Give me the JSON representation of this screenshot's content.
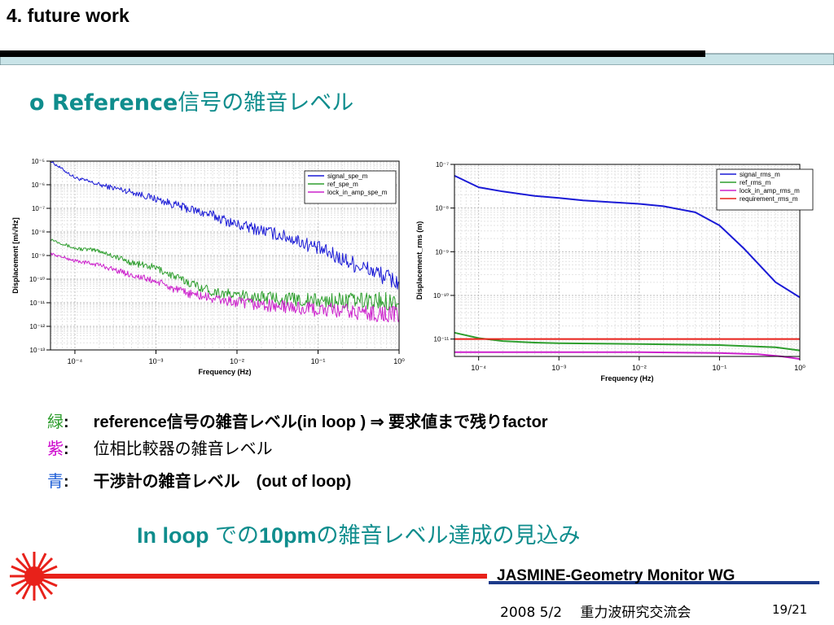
{
  "slide_title": "4. future work",
  "heading": {
    "prefix": "o Reference",
    "suffix": "信号の雑音レベル"
  },
  "colors": {
    "teal": "#0f8d8d",
    "green": "#2e9e2e",
    "magenta": "#cc00cc",
    "blue": "#1f5fd6",
    "red": "#e8211a"
  },
  "legend_notes": [
    {
      "key": "緑",
      "colon": ":",
      "text": "reference信号の雑音レベル(in loop )  ⇒ 要求値まで残りfactor",
      "color": "#2e9e2e"
    },
    {
      "key": "紫",
      "colon": ":",
      "text": "位相比較器の雑音レベル",
      "color": "#cc00cc"
    },
    {
      "key": "青",
      "colon": ":",
      "text": "干渉計の雑音レベル　(out of loop)",
      "color": "#1f5fd6"
    }
  ],
  "conclusion": {
    "part1": "In loop ",
    "part2": "での",
    "part3": "10pm",
    "part4": "の雑音レベル達成の見込み"
  },
  "footer": {
    "group": "JASMINE-Geometry Monitor WG",
    "date": "2008 5/2　 重力波研究交流会",
    "page": "19/21"
  },
  "chart_data": [
    {
      "type": "line",
      "xscale": "log",
      "yscale": "log",
      "xlabel": "Frequency (Hz)",
      "ylabel": "Displacement [m/√Hz]",
      "xlim": [
        5e-05,
        1
      ],
      "ylim": [
        1e-13,
        1e-05
      ],
      "x_ticks": [
        "10⁻⁴",
        "10⁻³",
        "10⁻²",
        "10⁻¹",
        "10⁰"
      ],
      "y_ticks": [
        "10⁻⁵",
        "10⁻⁶",
        "10⁻⁷",
        "10⁻⁸",
        "10⁻⁹",
        "10⁻¹⁰",
        "10⁻¹¹",
        "10⁻¹²",
        "10⁻¹³"
      ],
      "grid": true,
      "legend_position": "top-right",
      "series": [
        {
          "name": "signal_spe_m",
          "color": "#1a1ad6",
          "x": [
            5e-05,
            0.0001,
            0.0002,
            0.0005,
            0.001,
            0.002,
            0.005,
            0.01,
            0.02,
            0.05,
            0.1,
            0.2,
            0.5,
            1
          ],
          "y": [
            1e-05,
            2e-06,
            1e-06,
            5e-07,
            2.5e-07,
            1.2e-07,
            5e-08,
            2e-08,
            1.2e-08,
            5e-09,
            2e-09,
            7e-10,
            2e-10,
            7e-11
          ],
          "noisy": true
        },
        {
          "name": "ref_spe_m",
          "color": "#2e9e2e",
          "x": [
            5e-05,
            0.0001,
            0.0002,
            0.0005,
            0.001,
            0.002,
            0.005,
            0.01,
            0.1,
            1
          ],
          "y": [
            5e-09,
            2e-09,
            1.6e-09,
            5e-10,
            3e-10,
            1e-10,
            3e-11,
            2e-11,
            1.2e-11,
            1.2e-11
          ],
          "noisy": true
        },
        {
          "name": "lock_in_amp_spe_m",
          "color": "#cc22cc",
          "x": [
            5e-05,
            0.0001,
            0.0002,
            0.0005,
            0.001,
            0.002,
            0.005,
            0.01,
            0.1,
            1
          ],
          "y": [
            1.2e-09,
            6e-10,
            4e-10,
            1.5e-10,
            8e-11,
            3e-11,
            1.5e-11,
            1e-11,
            5e-12,
            3e-12
          ],
          "noisy": true
        }
      ]
    },
    {
      "type": "line",
      "xscale": "log",
      "yscale": "log",
      "xlabel": "Frequency (Hz)",
      "ylabel": "Displacement_rms (m)",
      "xlim": [
        5e-05,
        1
      ],
      "ylim": [
        4e-12,
        1e-07
      ],
      "x_ticks": [
        "10⁻⁴",
        "10⁻³",
        "10⁻²",
        "10⁻¹",
        "10⁰"
      ],
      "y_ticks": [
        "10⁻⁷",
        "10⁻⁸",
        "10⁻⁹",
        "10⁻¹⁰",
        "10⁻¹¹"
      ],
      "grid": true,
      "legend_position": "top-right",
      "series": [
        {
          "name": "signal_rms_m",
          "color": "#1a1ad6",
          "x": [
            5e-05,
            0.0001,
            0.0002,
            0.0005,
            0.001,
            0.002,
            0.005,
            0.01,
            0.02,
            0.05,
            0.1,
            0.2,
            0.5,
            1
          ],
          "y": [
            5.5e-08,
            3e-08,
            2.4e-08,
            1.9e-08,
            1.7e-08,
            1.5e-08,
            1.35e-08,
            1.25e-08,
            1.1e-08,
            8e-09,
            4e-09,
            1.2e-09,
            2e-10,
            9e-11
          ]
        },
        {
          "name": "ref_rms_m",
          "color": "#2e9e2e",
          "x": [
            5e-05,
            0.0001,
            0.0002,
            0.0005,
            0.001,
            0.01,
            0.1,
            0.5,
            1
          ],
          "y": [
            1.4e-11,
            1.05e-11,
            9e-12,
            8.3e-12,
            8e-12,
            7.7e-12,
            7.3e-12,
            6.5e-12,
            5.5e-12
          ]
        },
        {
          "name": "lock_in_amp_rms_m",
          "color": "#cc22cc",
          "x": [
            5e-05,
            0.001,
            0.01,
            0.1,
            0.3,
            0.6,
            1
          ],
          "y": [
            5e-12,
            5e-12,
            5e-12,
            4.8e-12,
            4.5e-12,
            4e-12,
            3.5e-12
          ]
        },
        {
          "name": "requirement_rms_m",
          "color": "#e8211a",
          "x": [
            5e-05,
            1
          ],
          "y": [
            1e-11,
            1e-11
          ]
        }
      ]
    }
  ]
}
